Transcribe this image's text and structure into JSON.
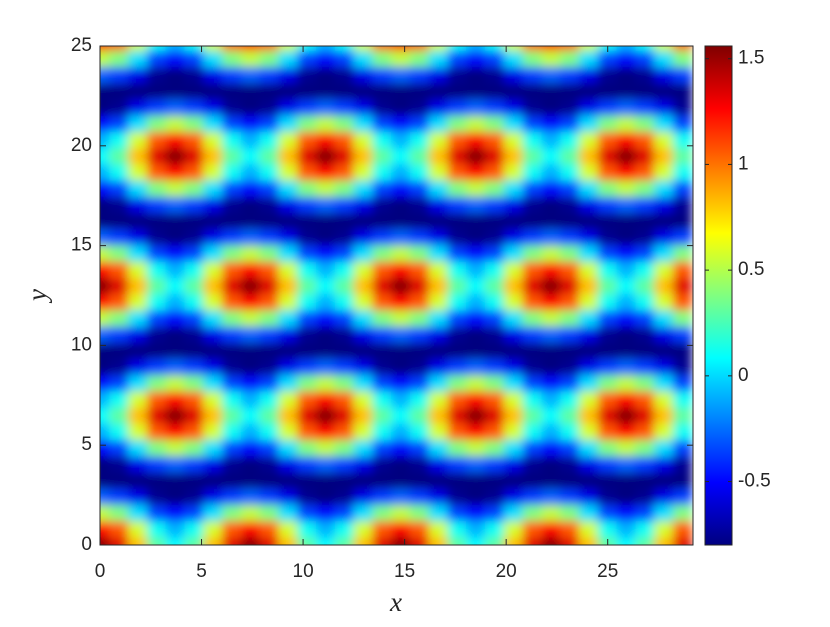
{
  "chart_data": {
    "type": "heatmap",
    "xlabel": "x",
    "ylabel": "y",
    "xlim": [
      0,
      29.2
    ],
    "ylim": [
      0,
      25
    ],
    "xticks": [
      0,
      5,
      10,
      15,
      20,
      25
    ],
    "yticks": [
      0,
      5,
      10,
      15,
      20,
      25
    ],
    "colormap": "jet",
    "colorbar": {
      "clim": [
        -0.8,
        1.56
      ],
      "ticks": [
        -0.5,
        0,
        0.5,
        1,
        1.5
      ]
    },
    "x": [
      0,
      0.925,
      1.85,
      2.775,
      3.7,
      4.625,
      5.55,
      6.475,
      7.4,
      8.325,
      9.25,
      10.175,
      11.1,
      12.025,
      12.95,
      13.875,
      14.8,
      15.725,
      16.65,
      17.575,
      18.5,
      19.425,
      20.35,
      21.275,
      22.2,
      23.125,
      24.05,
      24.975,
      25.9,
      26.825,
      27.75,
      28.675
    ],
    "y": [
      0,
      0.8125,
      1.625,
      2.4375,
      3.25,
      4.0625,
      4.875,
      5.6875,
      6.5,
      7.3125,
      8.125,
      8.9375,
      9.75,
      10.5625,
      11.375,
      12.1875,
      13,
      13.8125,
      14.625,
      15.4375,
      16.25,
      17.0625,
      17.875,
      18.6875,
      19.5,
      20.3125,
      21.125,
      21.9375,
      22.75,
      23.5625,
      24.375,
      25.1875
    ],
    "z": [
      [
        1.55,
        1.34,
        0.82,
        0.3,
        0.09,
        0.3,
        0.82,
        1.34,
        1.55,
        1.34,
        0.82,
        0.3,
        0.09,
        0.3,
        0.82,
        1.34,
        1.55,
        1.34,
        0.82,
        0.3,
        0.09,
        0.3,
        0.82,
        1.34,
        1.55,
        1.34,
        0.82,
        0.3,
        0.09,
        0.3,
        0.82,
        1.34
      ],
      [
        1.26,
        1.06,
        0.58,
        0.11,
        -0.09,
        0.11,
        0.58,
        1.06,
        1.26,
        1.06,
        0.58,
        0.11,
        -0.09,
        0.11,
        0.58,
        1.06,
        1.26,
        1.06,
        0.58,
        0.11,
        -0.09,
        0.11,
        0.58,
        1.06,
        1.26,
        1.06,
        0.58,
        0.11,
        -0.09,
        0.11,
        0.58,
        1.06
      ],
      [
        0.53,
        0.38,
        0.01,
        -0.36,
        -0.51,
        -0.36,
        0.01,
        0.38,
        0.53,
        0.38,
        0.01,
        -0.36,
        -0.51,
        -0.36,
        0.01,
        0.38,
        0.53,
        0.38,
        0.01,
        -0.36,
        -0.51,
        -0.36,
        0.01,
        0.38,
        0.53,
        0.38,
        0.01,
        -0.36,
        -0.51,
        -0.36,
        0.01,
        0.38
      ],
      [
        -0.28,
        -0.37,
        -0.56,
        -0.76,
        -0.8,
        -0.76,
        -0.56,
        -0.37,
        -0.28,
        -0.37,
        -0.56,
        -0.76,
        -0.8,
        -0.76,
        -0.56,
        -0.37,
        -0.28,
        -0.37,
        -0.56,
        -0.76,
        -0.8,
        -0.76,
        -0.56,
        -0.37,
        -0.28,
        -0.37,
        -0.56,
        -0.76,
        -0.8,
        -0.76,
        -0.56,
        -0.37
      ],
      [
        -0.8,
        -0.8,
        -0.8,
        -0.8,
        -0.8,
        -0.8,
        -0.8,
        -0.8,
        -0.8,
        -0.8,
        -0.8,
        -0.8,
        -0.8,
        -0.8,
        -0.8,
        -0.8,
        -0.8,
        -0.8,
        -0.8,
        -0.8,
        -0.8,
        -0.8,
        -0.8,
        -0.8,
        -0.8,
        -0.8,
        -0.8,
        -0.8,
        -0.8,
        -0.8,
        -0.8,
        -0.8
      ],
      [
        -0.8,
        -0.76,
        -0.56,
        -0.37,
        -0.28,
        -0.37,
        -0.56,
        -0.76,
        -0.8,
        -0.76,
        -0.56,
        -0.37,
        -0.28,
        -0.37,
        -0.56,
        -0.76,
        -0.8,
        -0.76,
        -0.56,
        -0.37,
        -0.28,
        -0.37,
        -0.56,
        -0.76,
        -0.8,
        -0.76,
        -0.56,
        -0.37,
        -0.28,
        -0.37,
        -0.56,
        -0.76
      ],
      [
        -0.51,
        -0.36,
        0.01,
        0.38,
        0.53,
        0.38,
        0.01,
        -0.36,
        -0.51,
        -0.36,
        0.01,
        0.38,
        0.53,
        0.38,
        0.01,
        -0.36,
        -0.51,
        -0.36,
        0.01,
        0.38,
        0.53,
        0.38,
        0.01,
        -0.36,
        -0.51,
        -0.36,
        0.01,
        0.38,
        0.53,
        0.38,
        0.01,
        -0.36
      ],
      [
        -0.09,
        0.11,
        0.58,
        1.06,
        1.26,
        1.06,
        0.58,
        0.11,
        -0.09,
        0.11,
        0.58,
        1.06,
        1.26,
        1.06,
        0.58,
        0.11,
        -0.09,
        0.11,
        0.58,
        1.06,
        1.26,
        1.06,
        0.58,
        0.11,
        -0.09,
        0.11,
        0.58,
        1.06,
        1.26,
        1.06,
        0.58,
        0.11
      ],
      [
        0.09,
        0.3,
        0.82,
        1.34,
        1.55,
        1.34,
        0.82,
        0.3,
        0.09,
        0.3,
        0.82,
        1.34,
        1.55,
        1.34,
        0.82,
        0.3,
        0.09,
        0.3,
        0.82,
        1.34,
        1.55,
        1.34,
        0.82,
        0.3,
        0.09,
        0.3,
        0.82,
        1.34,
        1.55,
        1.34,
        0.82,
        0.3
      ],
      [
        -0.09,
        0.11,
        0.58,
        1.06,
        1.26,
        1.06,
        0.58,
        0.11,
        -0.09,
        0.11,
        0.58,
        1.06,
        1.26,
        1.06,
        0.58,
        0.11,
        -0.09,
        0.11,
        0.58,
        1.06,
        1.26,
        1.06,
        0.58,
        0.11,
        -0.09,
        0.11,
        0.58,
        1.06,
        1.26,
        1.06,
        0.58,
        0.11
      ],
      [
        -0.51,
        -0.36,
        0.01,
        0.38,
        0.53,
        0.38,
        0.01,
        -0.36,
        -0.51,
        -0.36,
        0.01,
        0.38,
        0.53,
        0.38,
        0.01,
        -0.36,
        -0.51,
        -0.36,
        0.01,
        0.38,
        0.53,
        0.38,
        0.01,
        -0.36,
        -0.51,
        -0.36,
        0.01,
        0.38,
        0.53,
        0.38,
        0.01,
        -0.36
      ],
      [
        -0.8,
        -0.76,
        -0.56,
        -0.37,
        -0.28,
        -0.37,
        -0.56,
        -0.76,
        -0.8,
        -0.76,
        -0.56,
        -0.37,
        -0.28,
        -0.37,
        -0.56,
        -0.76,
        -0.8,
        -0.76,
        -0.56,
        -0.37,
        -0.28,
        -0.37,
        -0.56,
        -0.76,
        -0.8,
        -0.76,
        -0.56,
        -0.37,
        -0.28,
        -0.37,
        -0.56,
        -0.76
      ],
      [
        -0.8,
        -0.8,
        -0.8,
        -0.8,
        -0.8,
        -0.8,
        -0.8,
        -0.8,
        -0.8,
        -0.8,
        -0.8,
        -0.8,
        -0.8,
        -0.8,
        -0.8,
        -0.8,
        -0.8,
        -0.8,
        -0.8,
        -0.8,
        -0.8,
        -0.8,
        -0.8,
        -0.8,
        -0.8,
        -0.8,
        -0.8,
        -0.8,
        -0.8,
        -0.8,
        -0.8,
        -0.8
      ],
      [
        -0.28,
        -0.37,
        -0.56,
        -0.76,
        -0.8,
        -0.76,
        -0.56,
        -0.37,
        -0.28,
        -0.37,
        -0.56,
        -0.76,
        -0.8,
        -0.76,
        -0.56,
        -0.37,
        -0.28,
        -0.37,
        -0.56,
        -0.76,
        -0.8,
        -0.76,
        -0.56,
        -0.37,
        -0.28,
        -0.37,
        -0.56,
        -0.76,
        -0.8,
        -0.76,
        -0.56,
        -0.37
      ],
      [
        0.53,
        0.38,
        0.01,
        -0.36,
        -0.51,
        -0.36,
        0.01,
        0.38,
        0.53,
        0.38,
        0.01,
        -0.36,
        -0.51,
        -0.36,
        0.01,
        0.38,
        0.53,
        0.38,
        0.01,
        -0.36,
        -0.51,
        -0.36,
        0.01,
        0.38,
        0.53,
        0.38,
        0.01,
        -0.36,
        -0.51,
        -0.36,
        0.01,
        0.38
      ],
      [
        1.26,
        1.06,
        0.58,
        0.11,
        -0.09,
        0.11,
        0.58,
        1.06,
        1.26,
        1.06,
        0.58,
        0.11,
        -0.09,
        0.11,
        0.58,
        1.06,
        1.26,
        1.06,
        0.58,
        0.11,
        -0.09,
        0.11,
        0.58,
        1.06,
        1.26,
        1.06,
        0.58,
        0.11,
        -0.09,
        0.11,
        0.58,
        1.06
      ],
      [
        1.55,
        1.34,
        0.82,
        0.3,
        0.09,
        0.3,
        0.82,
        1.34,
        1.55,
        1.34,
        0.82,
        0.3,
        0.09,
        0.3,
        0.82,
        1.34,
        1.55,
        1.34,
        0.82,
        0.3,
        0.09,
        0.3,
        0.82,
        1.34,
        1.55,
        1.34,
        0.82,
        0.3,
        0.09,
        0.3,
        0.82,
        1.34
      ],
      [
        1.26,
        1.06,
        0.58,
        0.11,
        -0.09,
        0.11,
        0.58,
        1.06,
        1.26,
        1.06,
        0.58,
        0.11,
        -0.09,
        0.11,
        0.58,
        1.06,
        1.26,
        1.06,
        0.58,
        0.11,
        -0.09,
        0.11,
        0.58,
        1.06,
        1.26,
        1.06,
        0.58,
        0.11,
        -0.09,
        0.11,
        0.58,
        1.06
      ],
      [
        0.53,
        0.38,
        0.01,
        -0.36,
        -0.51,
        -0.36,
        0.01,
        0.38,
        0.53,
        0.38,
        0.01,
        -0.36,
        -0.51,
        -0.36,
        0.01,
        0.38,
        0.53,
        0.38,
        0.01,
        -0.36,
        -0.51,
        -0.36,
        0.01,
        0.38,
        0.53,
        0.38,
        0.01,
        -0.36,
        -0.51,
        -0.36,
        0.01,
        0.38
      ],
      [
        -0.28,
        -0.37,
        -0.56,
        -0.76,
        -0.8,
        -0.76,
        -0.56,
        -0.37,
        -0.28,
        -0.37,
        -0.56,
        -0.76,
        -0.8,
        -0.76,
        -0.56,
        -0.37,
        -0.28,
        -0.37,
        -0.56,
        -0.76,
        -0.8,
        -0.76,
        -0.56,
        -0.37,
        -0.28,
        -0.37,
        -0.56,
        -0.76,
        -0.8,
        -0.76,
        -0.56,
        -0.37
      ],
      [
        -0.8,
        -0.8,
        -0.8,
        -0.8,
        -0.8,
        -0.8,
        -0.8,
        -0.8,
        -0.8,
        -0.8,
        -0.8,
        -0.8,
        -0.8,
        -0.8,
        -0.8,
        -0.8,
        -0.8,
        -0.8,
        -0.8,
        -0.8,
        -0.8,
        -0.8,
        -0.8,
        -0.8,
        -0.8,
        -0.8,
        -0.8,
        -0.8,
        -0.8,
        -0.8,
        -0.8,
        -0.8
      ],
      [
        -0.8,
        -0.76,
        -0.56,
        -0.37,
        -0.28,
        -0.37,
        -0.56,
        -0.76,
        -0.8,
        -0.76,
        -0.56,
        -0.37,
        -0.28,
        -0.37,
        -0.56,
        -0.76,
        -0.8,
        -0.76,
        -0.56,
        -0.37,
        -0.28,
        -0.37,
        -0.56,
        -0.76,
        -0.8,
        -0.76,
        -0.56,
        -0.37,
        -0.28,
        -0.37,
        -0.56,
        -0.76
      ],
      [
        -0.51,
        -0.36,
        0.01,
        0.38,
        0.53,
        0.38,
        0.01,
        -0.36,
        -0.51,
        -0.36,
        0.01,
        0.38,
        0.53,
        0.38,
        0.01,
        -0.36,
        -0.51,
        -0.36,
        0.01,
        0.38,
        0.53,
        0.38,
        0.01,
        -0.36,
        -0.51,
        -0.36,
        0.01,
        0.38,
        0.53,
        0.38,
        0.01,
        -0.36
      ],
      [
        -0.09,
        0.11,
        0.58,
        1.06,
        1.26,
        1.06,
        0.58,
        0.11,
        -0.09,
        0.11,
        0.58,
        1.06,
        1.26,
        1.06,
        0.58,
        0.11,
        -0.09,
        0.11,
        0.58,
        1.06,
        1.26,
        1.06,
        0.58,
        0.11,
        -0.09,
        0.11,
        0.58,
        1.06,
        1.26,
        1.06,
        0.58,
        0.11
      ],
      [
        0.09,
        0.3,
        0.82,
        1.34,
        1.55,
        1.34,
        0.82,
        0.3,
        0.09,
        0.3,
        0.82,
        1.34,
        1.55,
        1.34,
        0.82,
        0.3,
        0.09,
        0.3,
        0.82,
        1.34,
        1.55,
        1.34,
        0.82,
        0.3,
        0.09,
        0.3,
        0.82,
        1.34,
        1.55,
        1.34,
        0.82,
        0.3
      ],
      [
        -0.09,
        0.11,
        0.58,
        1.06,
        1.26,
        1.06,
        0.58,
        0.11,
        -0.09,
        0.11,
        0.58,
        1.06,
        1.26,
        1.06,
        0.58,
        0.11,
        -0.09,
        0.11,
        0.58,
        1.06,
        1.26,
        1.06,
        0.58,
        0.11,
        -0.09,
        0.11,
        0.58,
        1.06,
        1.26,
        1.06,
        0.58,
        0.11
      ],
      [
        -0.51,
        -0.36,
        0.01,
        0.38,
        0.53,
        0.38,
        0.01,
        -0.36,
        -0.51,
        -0.36,
        0.01,
        0.38,
        0.53,
        0.38,
        0.01,
        -0.36,
        -0.51,
        -0.36,
        0.01,
        0.38,
        0.53,
        0.38,
        0.01,
        -0.36,
        -0.51,
        -0.36,
        0.01,
        0.38,
        0.53,
        0.38,
        0.01,
        -0.36
      ],
      [
        -0.8,
        -0.76,
        -0.56,
        -0.37,
        -0.28,
        -0.37,
        -0.56,
        -0.76,
        -0.8,
        -0.76,
        -0.56,
        -0.37,
        -0.28,
        -0.37,
        -0.56,
        -0.76,
        -0.8,
        -0.76,
        -0.56,
        -0.37,
        -0.28,
        -0.37,
        -0.56,
        -0.76,
        -0.8,
        -0.76,
        -0.56,
        -0.37,
        -0.28,
        -0.37,
        -0.56,
        -0.76
      ],
      [
        -0.8,
        -0.8,
        -0.8,
        -0.8,
        -0.8,
        -0.8,
        -0.8,
        -0.8,
        -0.8,
        -0.8,
        -0.8,
        -0.8,
        -0.8,
        -0.8,
        -0.8,
        -0.8,
        -0.8,
        -0.8,
        -0.8,
        -0.8,
        -0.8,
        -0.8,
        -0.8,
        -0.8,
        -0.8,
        -0.8,
        -0.8,
        -0.8,
        -0.8,
        -0.8,
        -0.8,
        -0.8
      ],
      [
        -0.28,
        -0.37,
        -0.56,
        -0.76,
        -0.8,
        -0.76,
        -0.56,
        -0.37,
        -0.28,
        -0.37,
        -0.56,
        -0.76,
        -0.8,
        -0.76,
        -0.56,
        -0.37,
        -0.28,
        -0.37,
        -0.56,
        -0.76,
        -0.8,
        -0.76,
        -0.56,
        -0.37,
        -0.28,
        -0.37,
        -0.56,
        -0.76,
        -0.8,
        -0.76,
        -0.56,
        -0.37
      ],
      [
        0.53,
        0.38,
        0.01,
        -0.36,
        -0.51,
        -0.36,
        0.01,
        0.38,
        0.53,
        0.38,
        0.01,
        -0.36,
        -0.51,
        -0.36,
        0.01,
        0.38,
        0.53,
        0.38,
        0.01,
        -0.36,
        -0.51,
        -0.36,
        0.01,
        0.38,
        0.53,
        0.38,
        0.01,
        -0.36,
        -0.51,
        -0.36,
        0.01,
        0.38
      ],
      [
        1.26,
        1.06,
        0.58,
        0.11,
        -0.09,
        0.11,
        0.58,
        1.06,
        1.26,
        1.06,
        0.58,
        0.11,
        -0.09,
        0.11,
        0.58,
        1.06,
        1.26,
        1.06,
        0.58,
        0.11,
        -0.09,
        0.11,
        0.58,
        1.06,
        1.26,
        1.06,
        0.58,
        0.11,
        -0.09,
        0.11,
        0.58,
        1.06
      ]
    ]
  }
}
